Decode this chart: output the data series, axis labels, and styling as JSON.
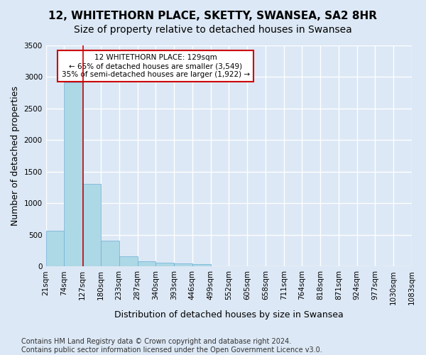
{
  "title1": "12, WHITETHORN PLACE, SKETTY, SWANSEA, SA2 8HR",
  "title2": "Size of property relative to detached houses in Swansea",
  "xlabel": "Distribution of detached houses by size in Swansea",
  "ylabel": "Number of detached properties",
  "footer": "Contains HM Land Registry data © Crown copyright and database right 2024.\nContains public sector information licensed under the Open Government Licence v3.0.",
  "bin_labels": [
    "21sqm",
    "74sqm",
    "127sqm",
    "180sqm",
    "233sqm",
    "287sqm",
    "340sqm",
    "393sqm",
    "446sqm",
    "499sqm",
    "552sqm",
    "605sqm",
    "658sqm",
    "711sqm",
    "764sqm",
    "818sqm",
    "871sqm",
    "924sqm",
    "977sqm",
    "1030sqm",
    "1083sqm"
  ],
  "bar_values": [
    560,
    2920,
    1310,
    410,
    155,
    80,
    55,
    50,
    40,
    0,
    0,
    0,
    0,
    0,
    0,
    0,
    0,
    0,
    0,
    0
  ],
  "bar_color": "#add8e6",
  "bar_edge_color": "#6baed6",
  "property_line_x": 2.04,
  "property_line_color": "#cc0000",
  "annotation_text": "12 WHITETHORN PLACE: 129sqm\n← 65% of detached houses are smaller (3,549)\n35% of semi-detached houses are larger (1,922) →",
  "annotation_box_color": "#ffffff",
  "annotation_box_edge": "#cc0000",
  "ylim": [
    0,
    3500
  ],
  "yticks": [
    0,
    500,
    1000,
    1500,
    2000,
    2500,
    3000,
    3500
  ],
  "background_color": "#dce8f5",
  "grid_color": "#ffffff",
  "title1_fontsize": 11,
  "title2_fontsize": 10,
  "xlabel_fontsize": 9,
  "ylabel_fontsize": 9,
  "tick_fontsize": 7.5,
  "footer_fontsize": 7
}
